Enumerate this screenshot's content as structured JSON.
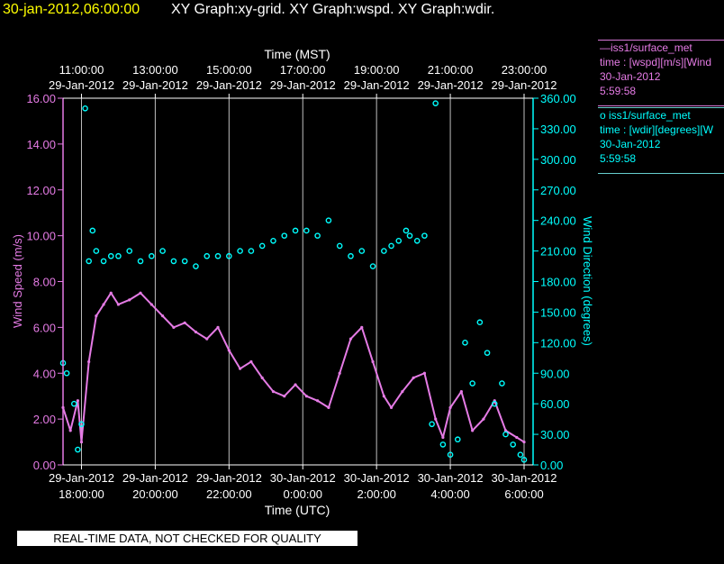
{
  "header": {
    "datetime": "30-jan-2012,06:00:00",
    "title": "XY Graph:xy-grid.  XY Graph:wspd.  XY Graph:wdir."
  },
  "legend": [
    {
      "line1": "—iss1/surface_met",
      "line2": "time : [wspd][m/s][Wind",
      "line3": "30-Jan-2012",
      "line4": "5:59:58",
      "color": "#e57be5"
    },
    {
      "line1": "o  iss1/surface_met",
      "line2": "time : [wdir][degrees][W",
      "line3": "30-Jan-2012",
      "line4": "5:59:58",
      "color": "#00ffff"
    }
  ],
  "quality_note": "REAL-TIME DATA, NOT CHECKED FOR QUALITY",
  "colors": {
    "wspd": "#e57be5",
    "wdir": "#00ffff",
    "grid": "#ffffff",
    "background": "#000000"
  },
  "chart_data": {
    "type": "line",
    "top_axis": {
      "title": "Time (MST)",
      "ticks": [
        {
          "t": "11:00:00",
          "d": "29-Jan-2012"
        },
        {
          "t": "13:00:00",
          "d": "29-Jan-2012"
        },
        {
          "t": "15:00:00",
          "d": "29-Jan-2012"
        },
        {
          "t": "17:00:00",
          "d": "29-Jan-2012"
        },
        {
          "t": "19:00:00",
          "d": "29-Jan-2012"
        },
        {
          "t": "21:00:00",
          "d": "29-Jan-2012"
        },
        {
          "t": "23:00:00",
          "d": "29-Jan-2012"
        }
      ]
    },
    "bottom_axis": {
      "title": "Time (UTC)",
      "ticks": [
        {
          "d": "29-Jan-2012",
          "t": "18:00:00"
        },
        {
          "d": "29-Jan-2012",
          "t": "20:00:00"
        },
        {
          "d": "29-Jan-2012",
          "t": "22:00:00"
        },
        {
          "d": "30-Jan-2012",
          "t": "0:00:00"
        },
        {
          "d": "30-Jan-2012",
          "t": "2:00:00"
        },
        {
          "d": "30-Jan-2012",
          "t": "4:00:00"
        },
        {
          "d": "30-Jan-2012",
          "t": "6:00:00"
        }
      ]
    },
    "x_hours_utc_range": [
      17.5,
      30.0
    ],
    "left_axis": {
      "label": "Wind Speed (m/s)",
      "ylim": [
        0,
        16
      ],
      "ticks": [
        "0.00",
        "2.00",
        "4.00",
        "6.00",
        "8.00",
        "10.00",
        "12.00",
        "14.00",
        "16.00"
      ]
    },
    "right_axis": {
      "label": "Wind Direction (degrees)",
      "ylim": [
        0,
        360
      ],
      "ticks": [
        "0.00",
        "30.00",
        "60.00",
        "90.00",
        "120.00",
        "150.00",
        "180.00",
        "210.00",
        "240.00",
        "270.00",
        "300.00",
        "330.00",
        "360.00"
      ]
    },
    "series": [
      {
        "name": "iss1/surface_met time : [wspd][m/s]",
        "axis": "left",
        "style": "line",
        "x": [
          17.5,
          17.7,
          17.9,
          18.0,
          18.2,
          18.4,
          18.6,
          18.8,
          19.0,
          19.3,
          19.6,
          19.9,
          20.2,
          20.5,
          20.8,
          21.1,
          21.4,
          21.7,
          22.0,
          22.3,
          22.6,
          22.9,
          23.2,
          23.5,
          23.8,
          24.1,
          24.4,
          24.7,
          25.0,
          25.3,
          25.6,
          25.9,
          26.2,
          26.4,
          26.7,
          27.0,
          27.3,
          27.6,
          27.8,
          28.0,
          28.3,
          28.6,
          28.9,
          29.2,
          29.5,
          29.8,
          30.0
        ],
        "y": [
          2.5,
          1.5,
          2.8,
          1.0,
          4.5,
          6.5,
          7.0,
          7.5,
          7.0,
          7.2,
          7.5,
          7.0,
          6.5,
          6.0,
          6.2,
          5.8,
          5.5,
          6.0,
          5.0,
          4.2,
          4.5,
          3.8,
          3.2,
          3.0,
          3.5,
          3.0,
          2.8,
          2.5,
          4.0,
          5.5,
          6.0,
          4.5,
          3.0,
          2.5,
          3.2,
          3.8,
          4.0,
          2.0,
          1.2,
          2.5,
          3.2,
          1.5,
          2.0,
          2.8,
          1.5,
          1.2,
          1.0
        ]
      },
      {
        "name": "iss1/surface_met time : [wdir][degrees]",
        "axis": "right",
        "style": "points",
        "x": [
          17.5,
          17.6,
          17.8,
          17.9,
          18.0,
          18.1,
          18.2,
          18.3,
          18.4,
          18.6,
          18.8,
          19.0,
          19.3,
          19.6,
          19.9,
          20.2,
          20.5,
          20.8,
          21.1,
          21.4,
          21.7,
          22.0,
          22.3,
          22.6,
          22.9,
          23.2,
          23.5,
          23.8,
          24.1,
          24.4,
          24.7,
          25.0,
          25.3,
          25.6,
          25.9,
          26.2,
          26.4,
          26.6,
          26.8,
          26.9,
          27.1,
          27.3,
          27.5,
          27.6,
          27.8,
          28.0,
          28.2,
          28.4,
          28.6,
          28.8,
          29.0,
          29.2,
          29.4,
          29.5,
          29.7,
          29.9,
          30.0
        ],
        "y": [
          100,
          90,
          60,
          15,
          40,
          350,
          200,
          230,
          210,
          200,
          205,
          205,
          210,
          200,
          205,
          210,
          200,
          200,
          195,
          205,
          205,
          205,
          210,
          210,
          215,
          220,
          225,
          230,
          230,
          225,
          240,
          215,
          205,
          210,
          195,
          210,
          215,
          220,
          230,
          225,
          220,
          225,
          40,
          355,
          20,
          10,
          25,
          120,
          80,
          140,
          110,
          60,
          80,
          30,
          20,
          10,
          5
        ]
      }
    ]
  }
}
